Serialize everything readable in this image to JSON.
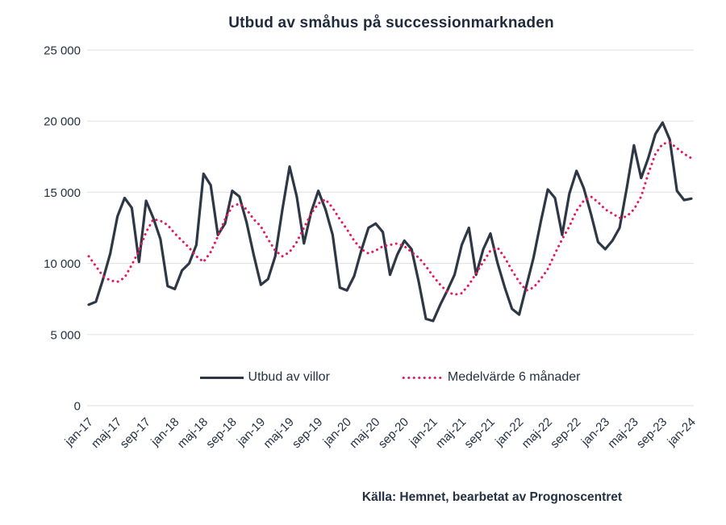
{
  "title": "Utbud av småhus på successionmarknaden",
  "source": "Källa: Hemnet, bearbetat av Prognoscentret",
  "legend": {
    "series1_label": "Utbud av villor",
    "series2_label": "Medelvärde 6 månader"
  },
  "colors": {
    "supply_line": "#2e3745",
    "average_line": "#e4195f",
    "grid": "#e5e5e5",
    "text": "#243142",
    "title_text": "#1f2b3c"
  },
  "chart_data": {
    "type": "line",
    "title": "Utbud av småhus på successionmarknaden",
    "xlabel": "",
    "ylabel": "",
    "ylim": [
      0,
      25000
    ],
    "grid": "horizontal",
    "legend_position": "bottom-inside",
    "y_tick_labels": [
      "0",
      "5 000",
      "10 000",
      "15 000",
      "20 000",
      "25 000"
    ],
    "y_tick_values": [
      0,
      5000,
      10000,
      15000,
      20000,
      25000
    ],
    "x_tick_labels": [
      "jan-17",
      "maj-17",
      "sep-17",
      "jan-18",
      "maj-18",
      "sep-18",
      "jan-19",
      "maj-19",
      "sep-19",
      "jan-20",
      "maj-20",
      "sep-20",
      "jan-21",
      "maj-21",
      "sep-21",
      "jan-22",
      "maj-22",
      "sep-22",
      "jan-23",
      "maj-23",
      "sep-23",
      "jan-24"
    ],
    "x_tick_every_n_months": 4,
    "points_span": "monthly jan-17 through jan-24 (85 points)",
    "series": [
      {
        "name": "Utbud av villor",
        "style": "solid",
        "color": "#2e3745",
        "values": [
          7100,
          7300,
          8900,
          10700,
          13300,
          14600,
          13900,
          10100,
          14400,
          13200,
          11700,
          8400,
          8200,
          9500,
          10000,
          11300,
          16300,
          15500,
          12000,
          12800,
          15100,
          14700,
          12900,
          10600,
          8500,
          8900,
          10500,
          13800,
          16800,
          14700,
          11400,
          13600,
          15100,
          13800,
          12000,
          8300,
          8100,
          9100,
          10900,
          12500,
          12800,
          12200,
          9200,
          10600,
          11600,
          11000,
          8700,
          6100,
          5950,
          7100,
          8100,
          9200,
          11300,
          12500,
          9200,
          11000,
          12100,
          10000,
          8300,
          6800,
          6400,
          8400,
          10400,
          12900,
          15200,
          14600,
          12000,
          14900,
          16500,
          15300,
          13500,
          11500,
          11000,
          11600,
          12500,
          15300,
          18300,
          16000,
          17400,
          19100,
          19900,
          18700,
          15100,
          14450,
          14550
        ]
      },
      {
        "name": "Medelvärde 6 månader",
        "style": "dotted",
        "color": "#e4195f",
        "values": [
          10500,
          9800,
          9100,
          8800,
          8700,
          9000,
          9900,
          10900,
          12200,
          13100,
          13000,
          12700,
          12100,
          11600,
          11100,
          10500,
          10100,
          10800,
          11900,
          13100,
          14000,
          14200,
          13800,
          13100,
          12600,
          11700,
          10900,
          10500,
          10800,
          11500,
          12500,
          13500,
          14200,
          14500,
          13900,
          13100,
          12400,
          11600,
          11000,
          10700,
          10900,
          11200,
          11300,
          11400,
          11200,
          10800,
          10400,
          9800,
          9100,
          8500,
          8000,
          7800,
          7900,
          8500,
          9300,
          10100,
          10900,
          11100,
          10400,
          9500,
          8700,
          8100,
          8300,
          8900,
          9600,
          10700,
          11700,
          12600,
          13700,
          14400,
          14700,
          14300,
          13800,
          13500,
          13200,
          13300,
          13800,
          14700,
          16300,
          17700,
          18400,
          18500,
          18100,
          17700,
          17400
        ]
      }
    ]
  }
}
